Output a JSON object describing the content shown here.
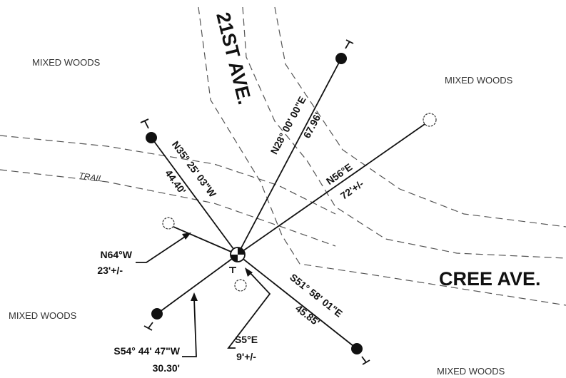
{
  "areas": [
    "MIXED WOODS",
    "MIXED WOODS",
    "MIXED WOODS",
    "MIXED WOODS"
  ],
  "roads": {
    "north": "21ST AVE.",
    "east": "CREE AVE.",
    "trail": "TRAIL"
  },
  "bearings": [
    {
      "bearing": "N35° 25' 03\"W",
      "distance": "44.40'"
    },
    {
      "bearing": "N28° 00' 00\"E",
      "distance": "67.96'"
    },
    {
      "bearing": "N56°E",
      "distance": "72'+/-"
    },
    {
      "bearing": "N64°W",
      "distance": "23'+/-"
    },
    {
      "bearing": "S54° 44' 47\"W",
      "distance": "30.30'"
    },
    {
      "bearing": "S5°E",
      "distance": "9'+/-"
    },
    {
      "bearing": "S51° 58' 01\"E",
      "distance": "45.85'"
    }
  ]
}
